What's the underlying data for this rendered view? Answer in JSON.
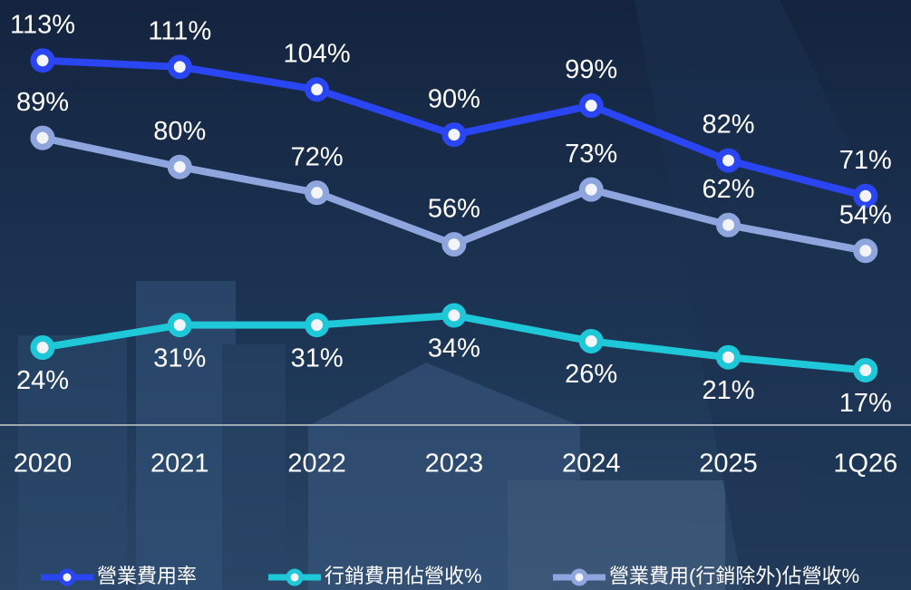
{
  "chart_data": {
    "type": "line",
    "categories": [
      "2020",
      "2021",
      "2022",
      "2023",
      "2024",
      "2025",
      "1Q26"
    ],
    "series": [
      {
        "name": "營業費用率",
        "color": "#2a45f2",
        "values": [
          113,
          111,
          104,
          90,
          99,
          82,
          71
        ],
        "value_labels": [
          "113%",
          "111%",
          "104%",
          "90%",
          "99%",
          "82%",
          "71%"
        ]
      },
      {
        "name": "行銷費用佔營收%",
        "color": "#1ec8d8",
        "values": [
          24,
          31,
          31,
          34,
          26,
          21,
          17
        ],
        "value_labels": [
          "24%",
          "31%",
          "31%",
          "34%",
          "26%",
          "21%",
          "17%"
        ]
      },
      {
        "name": "營業費用(行銷除外)佔營收%",
        "color": "#8ea6dd",
        "values": [
          89,
          80,
          72,
          56,
          73,
          62,
          54
        ],
        "value_labels": [
          "89%",
          "80%",
          "72%",
          "56%",
          "73%",
          "62%",
          "54%"
        ]
      }
    ]
  }
}
